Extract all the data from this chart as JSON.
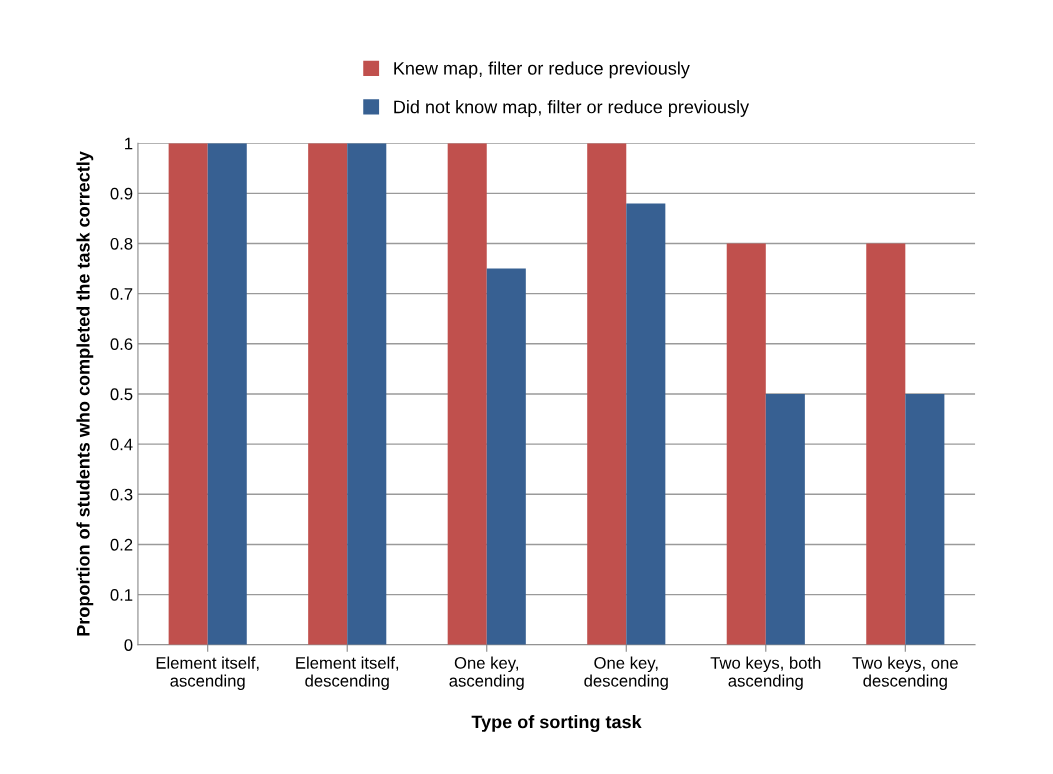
{
  "chart_data": {
    "type": "bar",
    "xlabel": "Type of sorting task",
    "ylabel": "Proportion of students who completed the task correctly",
    "categories": [
      "Element itself,\nascending",
      "Element itself,\ndescending",
      "One key,\nascending",
      "One key,\ndescending",
      "Two keys, both\nascending",
      "Two keys, one\ndescending"
    ],
    "series": [
      {
        "name": "Knew map, filter or reduce previously",
        "color": "#c0504d",
        "values": [
          1,
          1,
          1,
          1,
          0.8,
          0.8
        ]
      },
      {
        "name": "Did not know map, filter or reduce previously",
        "color": "#376092",
        "values": [
          1,
          1,
          0.75,
          0.88,
          0.5,
          0.5
        ]
      }
    ],
    "ylim": [
      0,
      1
    ],
    "yticks": [
      0,
      0.1,
      0.2,
      0.3,
      0.4,
      0.5,
      0.6,
      0.7,
      0.8,
      0.9,
      1
    ],
    "grid": "y",
    "legend": "top"
  }
}
